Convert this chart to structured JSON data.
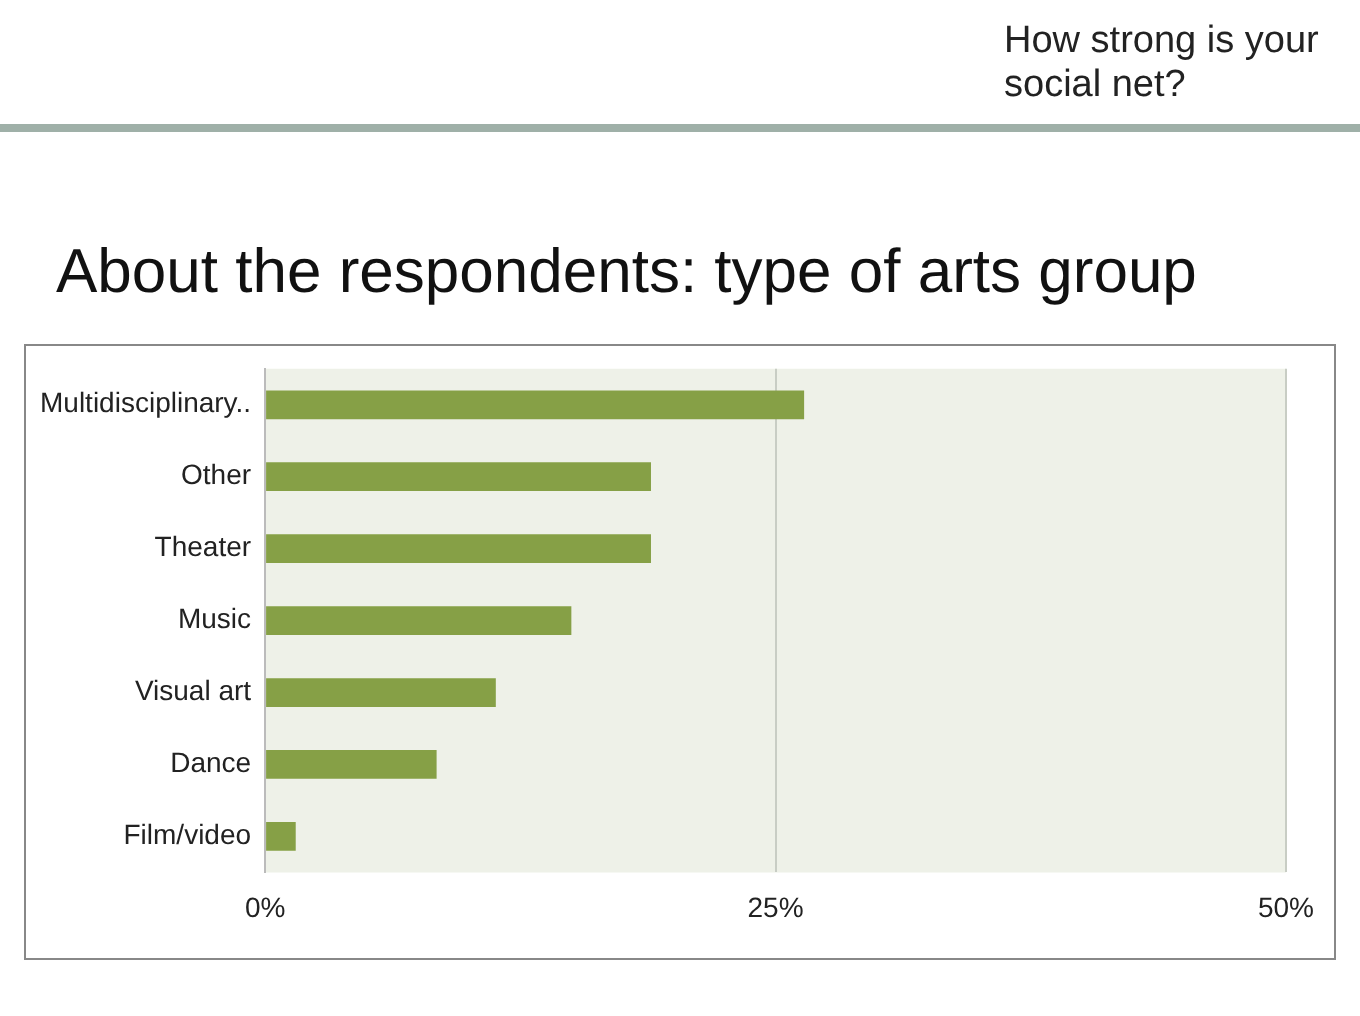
{
  "chart_data": {
    "type": "bar",
    "orientation": "horizontal",
    "title": "About the respondents: type of arts group",
    "subtitle": "How strong is your social net?",
    "categories": [
      "Multidisciplinary..",
      "Other",
      "Theater",
      "Music",
      "Visual art",
      "Dance",
      "Film/video"
    ],
    "values": [
      26.4,
      18.9,
      18.9,
      15.0,
      11.3,
      8.4,
      1.5
    ],
    "color": "#86a046",
    "xlim": [
      0,
      50
    ],
    "xticks": [
      {
        "value": 0,
        "label": "0%"
      },
      {
        "value": 25,
        "label": "25%"
      },
      {
        "value": 50,
        "label": "50%"
      }
    ],
    "grid": "x"
  }
}
